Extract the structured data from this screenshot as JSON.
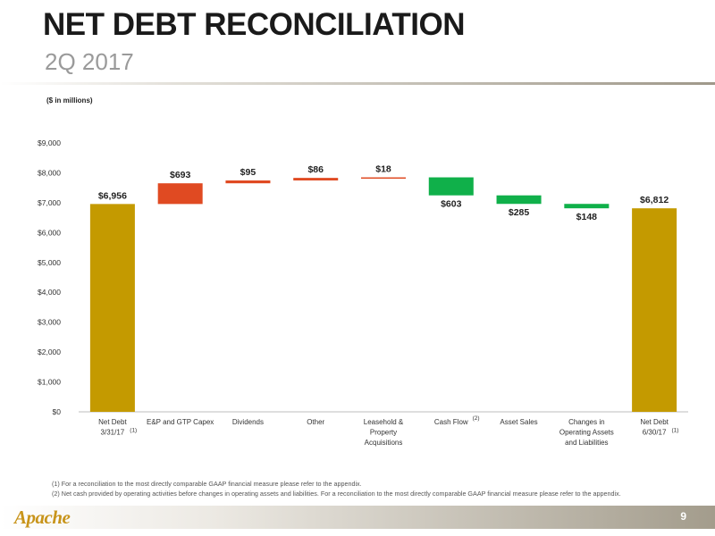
{
  "header": {
    "title": "NET DEBT RECONCILIATION",
    "subtitle": "2Q 2017"
  },
  "units_label": "($ in millions)",
  "chart_data": {
    "type": "bar",
    "subtype": "waterfall",
    "title": "",
    "xlabel": "",
    "ylabel": "",
    "ylim": [
      0,
      9000
    ],
    "yticks": [
      "$0",
      "$1,000",
      "$2,000",
      "$3,000",
      "$4,000",
      "$5,000",
      "$6,000",
      "$7,000",
      "$8,000",
      "$9,000"
    ],
    "ytick_values": [
      0,
      1000,
      2000,
      3000,
      4000,
      5000,
      6000,
      7000,
      8000,
      9000
    ],
    "grid": false,
    "legend": "none",
    "colors": {
      "total": "#c49a00",
      "increase": "#e04a22",
      "decrease": "#10b04a"
    },
    "bars": [
      {
        "category": [
          "Net Debt",
          "3/31/17"
        ],
        "footnote": "(1)",
        "kind": "total",
        "start": 0,
        "end": 6956,
        "label": "$6,956"
      },
      {
        "category": [
          "E&P and GTP Capex"
        ],
        "footnote": "",
        "kind": "increase",
        "start": 6956,
        "end": 7649,
        "label": "$693"
      },
      {
        "category": [
          "Dividends"
        ],
        "footnote": "",
        "kind": "increase",
        "start": 7649,
        "end": 7744,
        "label": "$95"
      },
      {
        "category": [
          "Other"
        ],
        "footnote": "",
        "kind": "increase",
        "start": 7744,
        "end": 7830,
        "label": "$86"
      },
      {
        "category": [
          "Leasehold &",
          "Property",
          "Acquisitions"
        ],
        "footnote": "",
        "kind": "increase",
        "start": 7830,
        "end": 7848,
        "label": "$18"
      },
      {
        "category": [
          "Cash Flow"
        ],
        "footnote": "(2)",
        "kind": "decrease",
        "start": 7848,
        "end": 7245,
        "label": "$603"
      },
      {
        "category": [
          "Asset Sales"
        ],
        "footnote": "",
        "kind": "decrease",
        "start": 7245,
        "end": 6960,
        "label": "$285"
      },
      {
        "category": [
          "Changes in",
          "Operating Assets",
          "and Liabilities"
        ],
        "footnote": "",
        "kind": "decrease",
        "start": 6960,
        "end": 6812,
        "label": "$148"
      },
      {
        "category": [
          "Net Debt",
          "6/30/17"
        ],
        "footnote": "(1)",
        "kind": "total",
        "start": 0,
        "end": 6812,
        "label": "$6,812"
      }
    ]
  },
  "footnotes": [
    "(1)  For a reconciliation to the most directly comparable GAAP financial measure please refer to the appendix.",
    "(2)  Net cash provided by operating activities before changes in operating assets and liabilities.  For a reconciliation to the most directly comparable GAAP financial measure please refer to the appendix."
  ],
  "footer": {
    "logo_text": "Apache",
    "page_number": "9"
  }
}
